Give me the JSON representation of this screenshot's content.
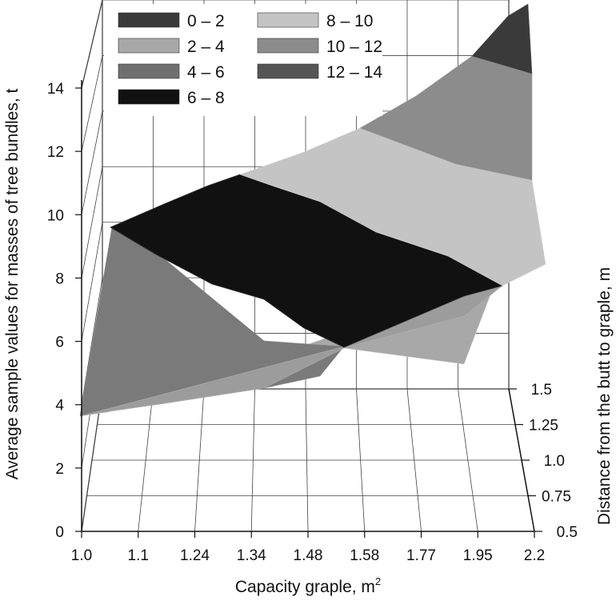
{
  "chart_data": {
    "type": "surface",
    "ylabel": "Average sample values for masses of tree bundles, t",
    "xlabel_text": "Capacity graple, m",
    "xlabel_sup": "2",
    "zlabel": "Distance from the butt to graple, m",
    "x_ticks": [
      "1.0",
      "1.1",
      "1.24",
      "1.34",
      "1.48",
      "1.58",
      "1.77",
      "1.95",
      "2.2"
    ],
    "depth_ticks": [
      "0.5",
      "0.75",
      "1.0",
      "1.25",
      "1.5"
    ],
    "y_ticks": [
      "0",
      "2",
      "4",
      "6",
      "8",
      "10",
      "12",
      "14"
    ],
    "ylim": [
      0,
      14
    ],
    "legend": [
      {
        "label": "0 – 2",
        "color": "#3a3a3a"
      },
      {
        "label": "8 – 10",
        "color": "#c4c4c4"
      },
      {
        "label": "2 – 4",
        "color": "#a8a8a8"
      },
      {
        "label": "10 – 12",
        "color": "#8c8c8c"
      },
      {
        "label": "4 – 6",
        "color": "#6f6f6f"
      },
      {
        "label": "12 – 14",
        "color": "#555555"
      },
      {
        "label": "6 – 8",
        "color": "#111111"
      }
    ],
    "surface_front_edge": {
      "x": [
        "1.0",
        "2.2"
      ],
      "values": [
        3.7,
        8.6
      ]
    },
    "surface_back_edge": {
      "x": [
        "1.0",
        "2.2"
      ],
      "values": [
        9.5,
        15.2
      ]
    }
  }
}
